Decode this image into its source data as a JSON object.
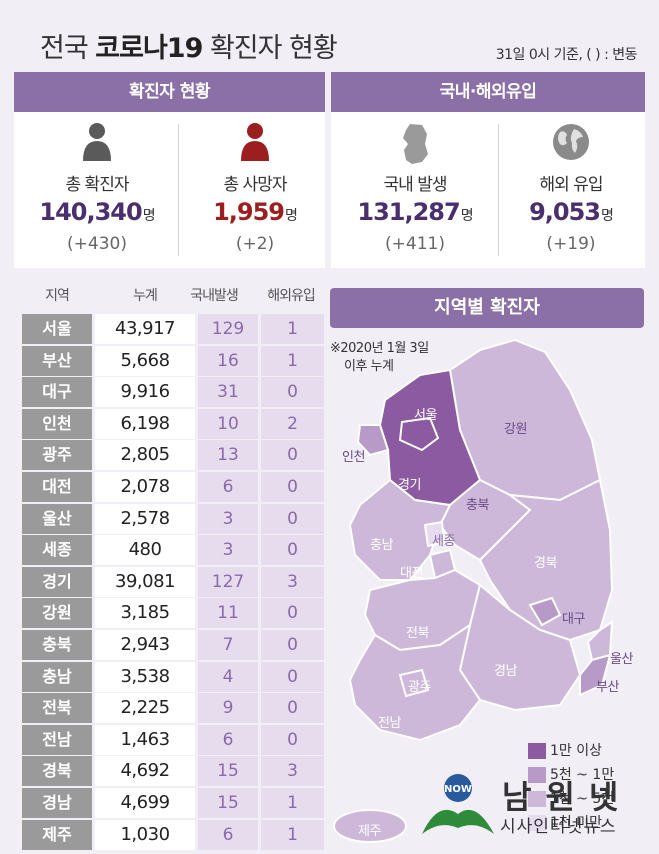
{
  "header": {
    "title_pre": "전국 ",
    "title_bold": "코로나19",
    "title_post": " 확진자 현황",
    "as_of": "31일 0시 기준, ( ) : 변동"
  },
  "panels": {
    "confirmed_title": "확진자 현황",
    "inflow_title": "국내·해외유입"
  },
  "stats": [
    {
      "label": "총 확진자",
      "value": "140,340",
      "unit": "명",
      "change": "(+430)",
      "color": "#4a2f6e"
    },
    {
      "label": "총 사망자",
      "value": "1,959",
      "unit": "명",
      "change": "(+2)",
      "color": "#9b1f1f"
    },
    {
      "label": "국내 발생",
      "value": "131,287",
      "unit": "명",
      "change": "(+411)",
      "color": "#4a2f6e"
    },
    {
      "label": "해외 유입",
      "value": "9,053",
      "unit": "명",
      "change": "(+19)",
      "color": "#4a2f6e"
    }
  ],
  "chart_data": {
    "type": "table",
    "columns": [
      "지역",
      "누계",
      "국내발생",
      "해외유입"
    ],
    "rows": [
      {
        "region": "서울",
        "total": "43,917",
        "domestic": "129",
        "overseas": "1"
      },
      {
        "region": "부산",
        "total": "5,668",
        "domestic": "16",
        "overseas": "1"
      },
      {
        "region": "대구",
        "total": "9,916",
        "domestic": "31",
        "overseas": "0"
      },
      {
        "region": "인천",
        "total": "6,198",
        "domestic": "10",
        "overseas": "2"
      },
      {
        "region": "광주",
        "total": "2,805",
        "domestic": "13",
        "overseas": "0"
      },
      {
        "region": "대전",
        "total": "2,078",
        "domestic": "6",
        "overseas": "0"
      },
      {
        "region": "울산",
        "total": "2,578",
        "domestic": "3",
        "overseas": "0"
      },
      {
        "region": "세종",
        "total": "480",
        "domestic": "3",
        "overseas": "0"
      },
      {
        "region": "경기",
        "total": "39,081",
        "domestic": "127",
        "overseas": "3"
      },
      {
        "region": "강원",
        "total": "3,185",
        "domestic": "11",
        "overseas": "0"
      },
      {
        "region": "충북",
        "total": "2,943",
        "domestic": "7",
        "overseas": "0"
      },
      {
        "region": "충남",
        "total": "3,538",
        "domestic": "4",
        "overseas": "0"
      },
      {
        "region": "전북",
        "total": "2,225",
        "domestic": "9",
        "overseas": "0"
      },
      {
        "region": "전남",
        "total": "1,463",
        "domestic": "6",
        "overseas": "0"
      },
      {
        "region": "경북",
        "total": "4,692",
        "domestic": "15",
        "overseas": "3"
      },
      {
        "region": "경남",
        "total": "4,699",
        "domestic": "15",
        "overseas": "1"
      },
      {
        "region": "제주",
        "total": "1,030",
        "domestic": "6",
        "overseas": "1"
      }
    ]
  },
  "map": {
    "title": "지역별 확진자",
    "note_line1": "※2020년 1월 3일",
    "note_line2": "이후 누계",
    "labels": {
      "seoul": "서울",
      "incheon": "인천",
      "gyeonggi": "경기",
      "gangwon": "강원",
      "chungbuk": "충북",
      "sejong": "세종",
      "chungnam": "충남",
      "daejeon": "대전",
      "gyeongbuk": "경북",
      "daegu": "대구",
      "jeonbuk": "전북",
      "ulsan": "울산",
      "gyeongnam": "경남",
      "busan": "부산",
      "gwangju": "광주",
      "jeonnam": "전남",
      "jeju": "제주"
    },
    "legend": [
      {
        "label": "1만 이상",
        "color": "#8b5aa0"
      },
      {
        "label": "5천 ~ 1만",
        "color": "#b79ac8"
      },
      {
        "label": "1천 ~ 5천",
        "color": "#cdb8da"
      },
      {
        "label": "1천 미만",
        "color": "#e7dcef"
      }
    ],
    "colors": {
      "high": "#8b5aa0",
      "mid": "#b79ac8",
      "low": "#cdb8da",
      "min": "#e7dcef"
    }
  },
  "logo": {
    "brand": "남원넷",
    "sub": "시사인터넷뉴스",
    "badge": "NOW"
  }
}
